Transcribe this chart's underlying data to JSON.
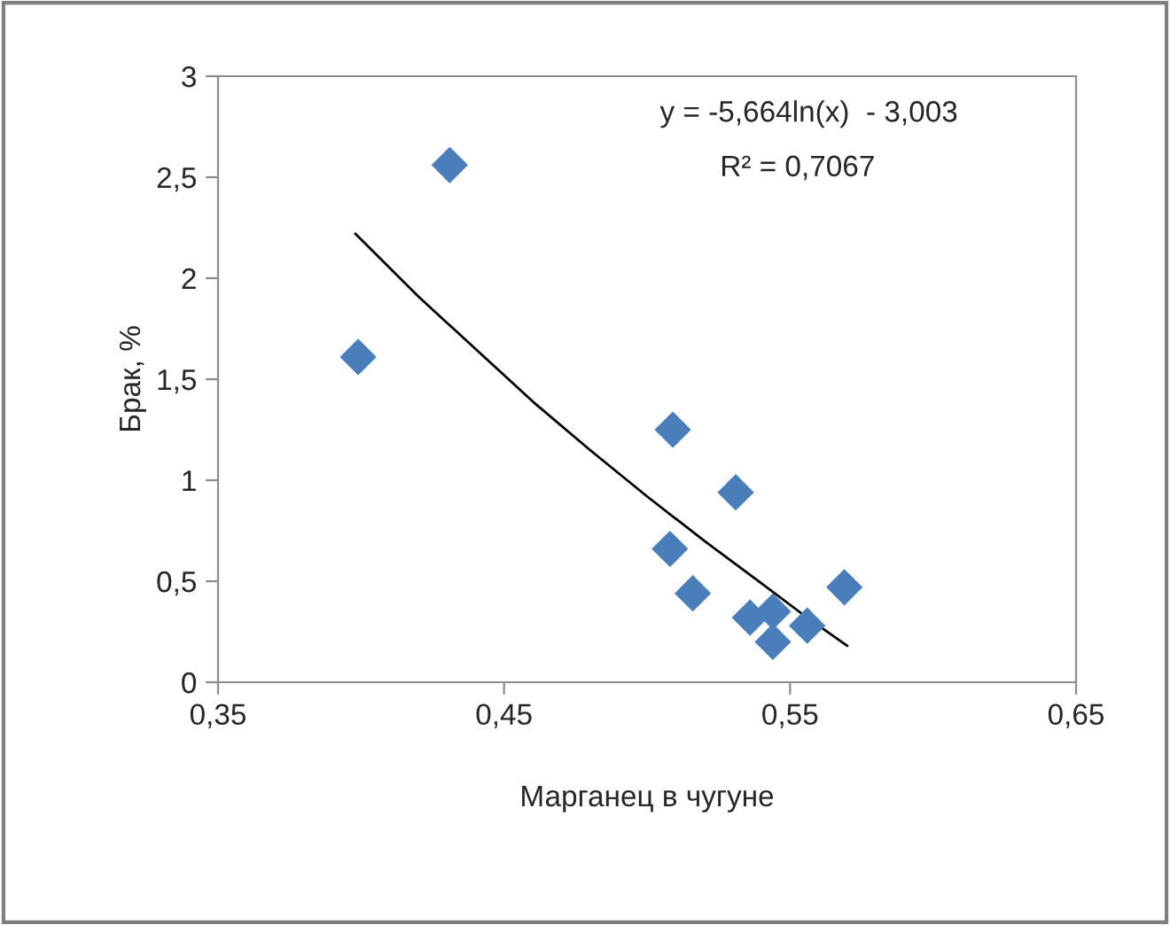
{
  "chart_data": {
    "type": "scatter",
    "xlabel": "Марганец в чугуне",
    "ylabel": "Брак, %",
    "xlim": [
      0.35,
      0.65
    ],
    "xticks": [
      {
        "value": 0.35,
        "label": "0,35"
      },
      {
        "value": 0.45,
        "label": "0,45"
      },
      {
        "value": 0.55,
        "label": "0,55"
      },
      {
        "value": 0.65,
        "label": "0,65"
      }
    ],
    "ylim": [
      0,
      3
    ],
    "yticks": [
      0,
      {
        "value": 0.5,
        "label": "0,5"
      },
      1,
      {
        "value": 1.5,
        "label": "1,5"
      },
      2,
      {
        "value": 2.5,
        "label": "2,5"
      },
      3
    ],
    "grid": false,
    "legend": false,
    "series": [
      {
        "marker": "diamond",
        "color": "#4a7ebb",
        "x": [
          0.399,
          0.431,
          0.509,
          0.508,
          0.516,
          0.531,
          0.536,
          0.544,
          0.544,
          0.556,
          0.569
        ],
        "values": [
          1.61,
          2.56,
          1.25,
          0.66,
          0.44,
          0.94,
          0.32,
          0.35,
          0.2,
          0.28,
          0.47
        ]
      },
      {
        "type": "line",
        "marker": "none",
        "color": "#000000",
        "line_style": "solid",
        "x": [
          0.398,
          0.42,
          0.44,
          0.46,
          0.48,
          0.5,
          0.52,
          0.54,
          0.555,
          0.57
        ],
        "values": [
          2.22,
          1.91,
          1.65,
          1.39,
          1.15,
          0.92,
          0.7,
          0.49,
          0.33,
          0.18
        ]
      }
    ],
    "annotations": [
      "y = -5,664ln(x)  - 3,003",
      "R² = 0,7067"
    ]
  }
}
